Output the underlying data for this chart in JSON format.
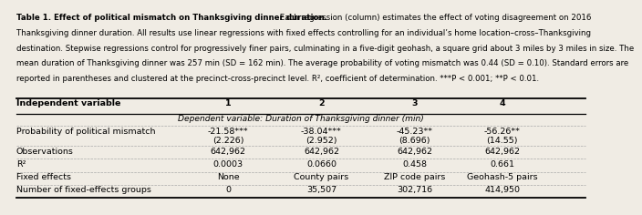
{
  "title_bold": "Table 1. Effect of political mismatch on Thanksgiving dinner duration.",
  "title_normal": " Each regression (column) estimates the effect of voting disagreement on 2016 Thanksgiving dinner duration. All results use linear regressions with fixed effects controlling for an individual’s home location–cross–Thanksgiving destination. Stepwise regressions control for progressively finer pairs, culminating in a five-digit geohash, a square grid about 3 miles by 3 miles in size. The mean duration of Thanksgiving dinner was 257 min (SD = 162 min). The average probability of voting mismatch was 0.44 (SD = 0.10). Standard errors are reported in parentheses and clustered at the precinct-cross-precinct level. R², coefficient of determination. ***P < 0.001; **P < 0.01.",
  "col_headers": [
    "Independent variable",
    "1",
    "2",
    "3",
    "4"
  ],
  "dep_var_label": "Dependent variable: Duration of Thanksgiving dinner (min)",
  "row1_label": "Probability of political mismatch",
  "row1_values": [
    "-21.58***",
    "-38.04***",
    "-45.23**",
    "-56.26**"
  ],
  "row1_se": [
    "(2.226)",
    "(2.952)",
    "(8.696)",
    "(14.55)"
  ],
  "row2_label": "Observations",
  "row2_values": [
    "642,962",
    "642,962",
    "642,962",
    "642,962"
  ],
  "row3_label": "R²",
  "row3_values": [
    "0.0003",
    "0.0660",
    "0.458",
    "0.661"
  ],
  "row4_label": "Fixed effects",
  "row4_values": [
    "None",
    "County pairs",
    "ZIP code pairs",
    "Geohash-5 pairs"
  ],
  "row5_label": "Number of fixed-effects groups",
  "row5_values": [
    "0",
    "35,507",
    "302,716",
    "414,950"
  ],
  "bg_color": "#f0ece4",
  "font_size_caption": 6.2,
  "font_size_table": 6.8
}
